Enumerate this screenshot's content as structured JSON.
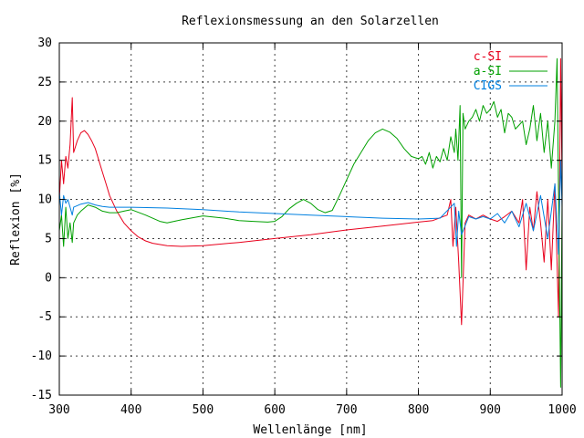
{
  "chart_data": {
    "type": "line",
    "title": "Reflexionsmessung an den Solarzellen",
    "xlabel": "Wellenlänge [nm]",
    "ylabel": "Reflexion [%]",
    "xlim": [
      300,
      1000
    ],
    "ylim": [
      -15,
      30
    ],
    "x_ticks": [
      300,
      400,
      500,
      600,
      700,
      800,
      900,
      1000
    ],
    "y_ticks": [
      -15,
      -10,
      -5,
      0,
      5,
      10,
      15,
      20,
      25,
      30
    ],
    "grid": true,
    "legend_position": "top-right",
    "series": [
      {
        "name": "c-SI",
        "color": "#e8001c",
        "x": [
          300,
          303,
          306,
          309,
          312,
          315,
          318,
          320,
          325,
          330,
          335,
          340,
          345,
          350,
          355,
          360,
          365,
          370,
          375,
          380,
          390,
          400,
          410,
          420,
          430,
          450,
          470,
          500,
          550,
          600,
          650,
          700,
          750,
          800,
          820,
          840,
          845,
          848,
          852,
          856,
          860,
          865,
          870,
          880,
          890,
          900,
          910,
          920,
          930,
          940,
          945,
          950,
          955,
          960,
          965,
          970,
          975,
          980,
          985,
          990,
          995,
          998,
          1000
        ],
        "y": [
          10,
          15,
          12,
          15.5,
          14,
          17,
          23,
          16,
          17.5,
          18.5,
          18.8,
          18.3,
          17.5,
          16.5,
          15,
          13.5,
          12,
          10.5,
          9.5,
          8.5,
          7,
          6,
          5.2,
          4.7,
          4.4,
          4.1,
          4,
          4.1,
          4.5,
          5,
          5.5,
          6.1,
          6.6,
          7.1,
          7.3,
          8,
          10,
          4,
          9,
          2,
          -6,
          7,
          8,
          7.5,
          8,
          7.5,
          7.2,
          7.8,
          8.5,
          7,
          10,
          1,
          9,
          6,
          11,
          7,
          2,
          10,
          1,
          12,
          -5,
          28,
          12
        ]
      },
      {
        "name": "a-SI",
        "color": "#00a000",
        "x": [
          300,
          303,
          306,
          309,
          312,
          315,
          318,
          320,
          325,
          330,
          340,
          350,
          360,
          370,
          380,
          390,
          400,
          420,
          440,
          450,
          470,
          500,
          530,
          550,
          570,
          590,
          600,
          610,
          620,
          630,
          640,
          650,
          660,
          670,
          680,
          690,
          700,
          710,
          720,
          730,
          740,
          750,
          760,
          770,
          780,
          790,
          800,
          805,
          810,
          815,
          820,
          825,
          830,
          835,
          840,
          845,
          850,
          852,
          855,
          858,
          860,
          862,
          865,
          870,
          875,
          880,
          885,
          890,
          895,
          900,
          905,
          910,
          915,
          920,
          925,
          930,
          935,
          940,
          945,
          950,
          955,
          960,
          965,
          970,
          975,
          980,
          985,
          990,
          993,
          996,
          998,
          1000
        ],
        "y": [
          6,
          8,
          4,
          9,
          5,
          7,
          4.5,
          7,
          8,
          8.5,
          9.3,
          9,
          8.5,
          8.3,
          8.3,
          8.5,
          8.7,
          8,
          7.2,
          7,
          7.4,
          7.9,
          7.6,
          7.3,
          7.2,
          7.1,
          7.2,
          7.8,
          8.8,
          9.5,
          10,
          9.5,
          8.7,
          8.3,
          8.6,
          10.5,
          12.5,
          14.5,
          16,
          17.5,
          18.5,
          19,
          18.6,
          17.8,
          16.5,
          15.5,
          15.2,
          15.5,
          14.5,
          16,
          14,
          15.5,
          14.8,
          16.5,
          15,
          18,
          16,
          19,
          15,
          22,
          0,
          21,
          19,
          20,
          20.5,
          21.5,
          20,
          22,
          21,
          21.5,
          22.5,
          20.5,
          21.5,
          18.5,
          21,
          20.5,
          19,
          19.5,
          20,
          17,
          19,
          22,
          17.5,
          21,
          16,
          20,
          14,
          20,
          28,
          2,
          -14,
          10
        ]
      },
      {
        "name": "CIGS",
        "color": "#0080e0",
        "x": [
          300,
          303,
          306,
          309,
          312,
          315,
          318,
          320,
          330,
          340,
          350,
          360,
          370,
          380,
          400,
          450,
          500,
          550,
          600,
          650,
          700,
          750,
          800,
          830,
          850,
          853,
          856,
          860,
          870,
          880,
          890,
          900,
          910,
          920,
          930,
          940,
          950,
          960,
          970,
          980,
          990,
          995,
          998,
          1000
        ],
        "y": [
          11,
          8,
          10.5,
          9.5,
          10,
          9,
          8,
          9,
          9.4,
          9.6,
          9.3,
          9.1,
          9,
          9,
          9,
          8.9,
          8.7,
          8.4,
          8.2,
          8,
          7.8,
          7.6,
          7.5,
          7.6,
          9.5,
          4,
          8.5,
          5.5,
          7.8,
          7.5,
          7.8,
          7.5,
          8.2,
          7,
          8.5,
          6.5,
          9.5,
          6,
          10.5,
          5,
          12,
          3,
          15,
          9
        ]
      }
    ]
  }
}
